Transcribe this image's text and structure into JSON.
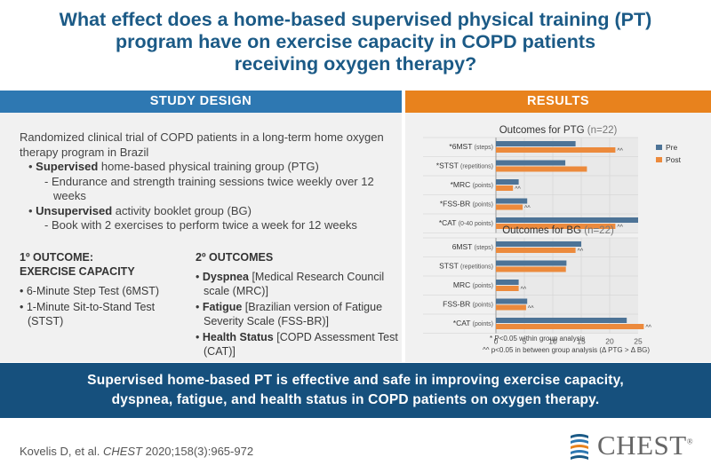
{
  "title_lines": [
    "What effect does a home-based supervised physical training (PT)",
    "program have on exercise capacity in COPD patients",
    "receiving oxygen therapy?"
  ],
  "study_design": {
    "header": "STUDY DESIGN",
    "intro": "Randomized clinical trial of COPD patients in a long-term home oxygen therapy program in Brazil",
    "ptg_bold": "Supervised",
    "ptg_rest": " home-based physical training group (PTG)",
    "ptg_sub": "Endurance and strength training sessions twice weekly over 12 weeks",
    "bg_bold": "Unsupervised",
    "bg_rest": " activity booklet group (BG)",
    "bg_sub": "Book with 2 exercises to perform twice a week for 12 weeks",
    "primary_heading_1": "1º OUTCOME:",
    "primary_heading_2": "EXERCISE CAPACITY",
    "primary_items": [
      "6-Minute Step Test (6MST)",
      "1-Minute Sit-to-Stand Test (STST)"
    ],
    "secondary_heading": "2º OUTCOMES",
    "secondary": [
      {
        "bold": "Dyspnea",
        "rest": " [Medical Research Council scale (MRC)]"
      },
      {
        "bold": "Fatigue",
        "rest": " [Brazilian version of Fatigue Severity Scale (FSS-BR)]"
      },
      {
        "bold": "Health Status",
        "rest": " [COPD Assessment Test (CAT)]"
      }
    ]
  },
  "results": {
    "header": "RESULTS",
    "footnote_1": "*  P<0.05 within group analysis",
    "footnote_2": "^^  p<0.05 in between group analysis (Δ PTG > Δ BG)"
  },
  "chart_data": [
    {
      "type": "bar",
      "orientation": "horizontal",
      "title": "Outcomes for PTG",
      "title_suffix": "(n=22)",
      "categories": [
        "*6MST (steps)",
        "*STST (repetitions)",
        "*MRC (points)",
        "*FSS-BR (points)",
        "*CAT (0-40 points)"
      ],
      "cat_main": [
        "*6MST",
        "*STST",
        "*MRC",
        "*FSS-BR",
        "*CAT"
      ],
      "cat_unit": [
        "(steps)",
        "(repetitions)",
        "(points)",
        "(points)",
        "(0-40 points)"
      ],
      "series": [
        {
          "name": "Pre",
          "values": [
            14,
            12.2,
            4,
            5.5,
            25
          ],
          "color": "#4d7396",
          "marks": [
            "",
            "",
            "",
            "",
            ""
          ]
        },
        {
          "name": "Post",
          "values": [
            21,
            16,
            3,
            4.7,
            21
          ],
          "color": "#ec8a3c",
          "marks": [
            "^^",
            "",
            "^^",
            "^^",
            "^^"
          ]
        }
      ],
      "xlim": [
        0,
        25
      ]
    },
    {
      "type": "bar",
      "orientation": "horizontal",
      "title": "Outcomes for BG",
      "title_suffix": "(n=22)",
      "categories": [
        "6MST (steps)",
        "STST (repetitions)",
        "MRC (points)",
        "FSS-BR (points)",
        "*CAT (points)"
      ],
      "cat_main": [
        "6MST",
        "STST",
        "MRC",
        "FSS-BR",
        "*CAT"
      ],
      "cat_unit": [
        "(steps)",
        "(repetitions)",
        "(points)",
        "(points)",
        "(points)"
      ],
      "series": [
        {
          "name": "Pre",
          "values": [
            15,
            12.4,
            4,
            5.5,
            23
          ],
          "color": "#4d7396",
          "marks": [
            "",
            "",
            "",
            "",
            ""
          ]
        },
        {
          "name": "Post",
          "values": [
            14,
            12.3,
            4,
            5.3,
            26
          ],
          "color": "#ec8a3c",
          "marks": [
            "^^",
            "",
            "^^",
            "^^",
            "^^"
          ]
        }
      ],
      "xlim": [
        0,
        25
      ],
      "xticks": [
        0,
        5,
        10,
        15,
        20,
        25
      ]
    }
  ],
  "conclusion_lines": [
    "Supervised home-based PT is effective and safe in improving exercise capacity,",
    "dyspnea, fatigue, and health status in COPD patients on oxygen therapy."
  ],
  "citation": {
    "authors": "Kovelis D, et al. ",
    "journal": "CHEST",
    "ref": " 2020;158(3):965-972"
  },
  "logo_text": "CHEST",
  "logo_mark": "®",
  "colors": {
    "title": "#1b5a86",
    "design_header": "#2e78b2",
    "results_header": "#e8821d",
    "conclusion_bar": "#16507d",
    "pre": "#4d7396",
    "post": "#ec8a3c"
  }
}
